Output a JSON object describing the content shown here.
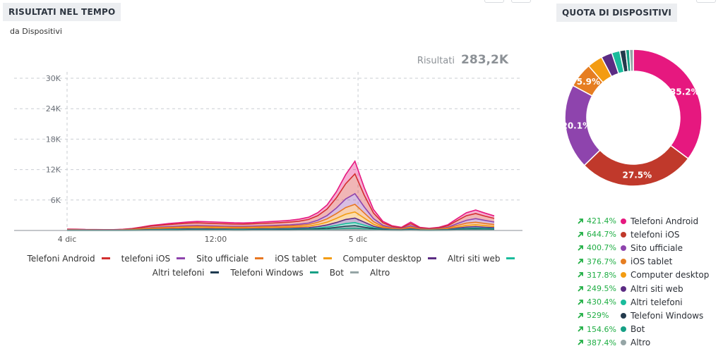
{
  "left_panel": {
    "title": "RISULTATI NEL TEMPO",
    "subtitle": "da Dispositivi",
    "results_label": "Risultati",
    "results_value": "283,2K"
  },
  "right_panel": {
    "title": "QUOTA DI DISPOSITIVI"
  },
  "chart_data": [
    {
      "type": "area",
      "stacked": true,
      "x_tick_labels": [
        "4 dic",
        "12:00",
        "5 dic"
      ],
      "y_tick_labels": [
        "6K",
        "12K",
        "18K",
        "24K",
        "30K"
      ],
      "ylim": [
        0,
        30000
      ],
      "grid": true,
      "legend_position": "bottom",
      "x_hours": [
        0,
        3,
        6,
        9,
        12,
        15,
        18,
        21,
        24,
        27,
        30,
        33,
        36,
        39,
        42,
        45,
        48,
        51,
        54,
        57,
        60,
        63,
        66,
        69,
        72,
        75,
        78,
        81,
        84,
        87,
        90,
        93,
        96,
        99,
        102,
        105,
        108,
        111,
        114,
        117,
        120,
        123,
        126,
        129,
        132,
        135,
        138
      ],
      "series": [
        {
          "name": "Telefoni Android",
          "color": "#e6187f",
          "values": [
            60,
            50,
            40,
            30,
            20,
            20,
            30,
            50,
            80,
            120,
            150,
            200,
            230,
            250,
            280,
            300,
            300,
            280,
            260,
            250,
            260,
            280,
            300,
            330,
            350,
            400,
            450,
            600,
            800,
            1200,
            1800,
            2500,
            1500,
            700,
            300,
            150,
            100,
            300,
            100,
            80,
            100,
            200,
            400,
            600,
            700,
            600,
            500
          ]
        },
        {
          "name": "telefoni iOS",
          "color": "#d32f2f",
          "values": [
            60,
            50,
            40,
            40,
            30,
            30,
            60,
            100,
            200,
            300,
            350,
            400,
            450,
            500,
            520,
            500,
            480,
            460,
            450,
            440,
            450,
            470,
            500,
            520,
            550,
            600,
            700,
            900,
            1300,
            2000,
            3000,
            3900,
            2300,
            1100,
            500,
            250,
            150,
            400,
            150,
            100,
            150,
            300,
            600,
            900,
            1000,
            850,
            700
          ]
        },
        {
          "name": "Sito ufficiale",
          "color": "#8e44ad",
          "values": [
            30,
            30,
            20,
            20,
            20,
            20,
            20,
            40,
            60,
            100,
            120,
            140,
            150,
            170,
            180,
            170,
            160,
            150,
            150,
            150,
            160,
            170,
            180,
            200,
            210,
            240,
            280,
            400,
            650,
            1100,
            1700,
            2100,
            1200,
            600,
            250,
            120,
            80,
            250,
            80,
            60,
            80,
            150,
            350,
            550,
            700,
            600,
            500
          ]
        },
        {
          "name": "iOS tablet",
          "color": "#e87722",
          "values": [
            40,
            30,
            30,
            20,
            20,
            20,
            40,
            60,
            100,
            150,
            180,
            200,
            220,
            230,
            240,
            230,
            220,
            210,
            200,
            200,
            210,
            220,
            230,
            240,
            250,
            280,
            330,
            450,
            650,
            950,
            1300,
            1500,
            1000,
            500,
            220,
            120,
            80,
            200,
            80,
            60,
            80,
            150,
            300,
            450,
            500,
            420,
            360
          ]
        },
        {
          "name": "Computer desktop",
          "color": "#f39c12",
          "values": [
            30,
            30,
            20,
            20,
            20,
            20,
            30,
            50,
            80,
            120,
            150,
            170,
            190,
            200,
            210,
            200,
            190,
            180,
            170,
            170,
            180,
            190,
            200,
            210,
            220,
            250,
            290,
            400,
            560,
            800,
            1050,
            1200,
            800,
            400,
            170,
            90,
            60,
            150,
            60,
            40,
            60,
            110,
            220,
            330,
            380,
            320,
            270
          ]
        },
        {
          "name": "Altri siti web",
          "color": "#5b2c83",
          "values": [
            20,
            20,
            10,
            10,
            10,
            10,
            20,
            30,
            50,
            70,
            80,
            100,
            110,
            120,
            130,
            120,
            110,
            110,
            100,
            100,
            110,
            120,
            130,
            140,
            150,
            170,
            200,
            280,
            400,
            580,
            800,
            900,
            600,
            300,
            130,
            70,
            50,
            120,
            50,
            30,
            50,
            80,
            170,
            250,
            280,
            240,
            200
          ]
        },
        {
          "name": "Altri telefoni",
          "color": "#1abc9c",
          "values": [
            10,
            10,
            10,
            10,
            10,
            10,
            10,
            20,
            30,
            40,
            50,
            60,
            70,
            80,
            80,
            80,
            70,
            70,
            70,
            70,
            70,
            80,
            80,
            90,
            100,
            110,
            130,
            180,
            260,
            380,
            520,
            600,
            400,
            200,
            90,
            50,
            30,
            80,
            30,
            20,
            30,
            50,
            110,
            160,
            180,
            150,
            130
          ]
        },
        {
          "name": "Telefoni Windows",
          "color": "#1e3a50",
          "values": [
            10,
            10,
            10,
            10,
            10,
            10,
            10,
            20,
            30,
            40,
            40,
            50,
            60,
            60,
            70,
            60,
            60,
            60,
            60,
            60,
            60,
            70,
            70,
            80,
            90,
            100,
            120,
            160,
            220,
            320,
            440,
            500,
            330,
            170,
            80,
            40,
            30,
            70,
            30,
            20,
            30,
            40,
            90,
            130,
            150,
            130,
            110
          ]
        },
        {
          "name": "Bot",
          "color": "#16a085",
          "values": [
            10,
            10,
            10,
            10,
            10,
            10,
            10,
            10,
            20,
            20,
            30,
            30,
            30,
            40,
            40,
            40,
            40,
            30,
            30,
            30,
            30,
            40,
            40,
            40,
            50,
            50,
            60,
            80,
            110,
            160,
            220,
            250,
            170,
            90,
            40,
            20,
            20,
            40,
            20,
            10,
            20,
            20,
            50,
            70,
            80,
            70,
            60
          ]
        },
        {
          "name": "Altro",
          "color": "#95a5a6",
          "values": [
            10,
            10,
            10,
            10,
            10,
            10,
            10,
            10,
            10,
            20,
            20,
            20,
            20,
            30,
            30,
            30,
            30,
            30,
            20,
            20,
            30,
            30,
            30,
            30,
            30,
            40,
            50,
            60,
            90,
            130,
            180,
            200,
            140,
            70,
            30,
            20,
            10,
            30,
            10,
            10,
            10,
            20,
            40,
            60,
            60,
            50,
            40
          ]
        }
      ]
    },
    {
      "type": "pie",
      "donut": true,
      "slices": [
        {
          "label": "Telefoni Android",
          "value": 35.2,
          "display": "35.2%",
          "color": "#e6187f",
          "change": "421.4%"
        },
        {
          "label": "telefoni iOS",
          "value": 27.5,
          "display": "27.5%",
          "color": "#c0392b",
          "change": "644.7%"
        },
        {
          "label": "Sito ufficiale",
          "value": 20.1,
          "display": "20.1%",
          "color": "#8e44ad",
          "change": "400.7%"
        },
        {
          "label": "iOS tablet",
          "value": 5.9,
          "display": "5.9%",
          "color": "#e67e22",
          "change": "376.7%"
        },
        {
          "label": "Computer desktop",
          "value": 3.6,
          "display": "",
          "color": "#f39c12",
          "change": "317.8%"
        },
        {
          "label": "Altri siti web",
          "value": 2.6,
          "display": "",
          "color": "#5b2c83",
          "change": "249.5%"
        },
        {
          "label": "Altri telefoni",
          "value": 1.9,
          "display": "",
          "color": "#1abc9c",
          "change": "430.4%"
        },
        {
          "label": "Telefoni Windows",
          "value": 1.4,
          "display": "",
          "color": "#233a4d",
          "change": "529%"
        },
        {
          "label": "Bot",
          "value": 0.9,
          "display": "",
          "color": "#16a085",
          "change": "154.6%"
        },
        {
          "label": "Altro",
          "value": 0.9,
          "display": "",
          "color": "#95a5a6",
          "change": "387.4%"
        }
      ]
    }
  ]
}
